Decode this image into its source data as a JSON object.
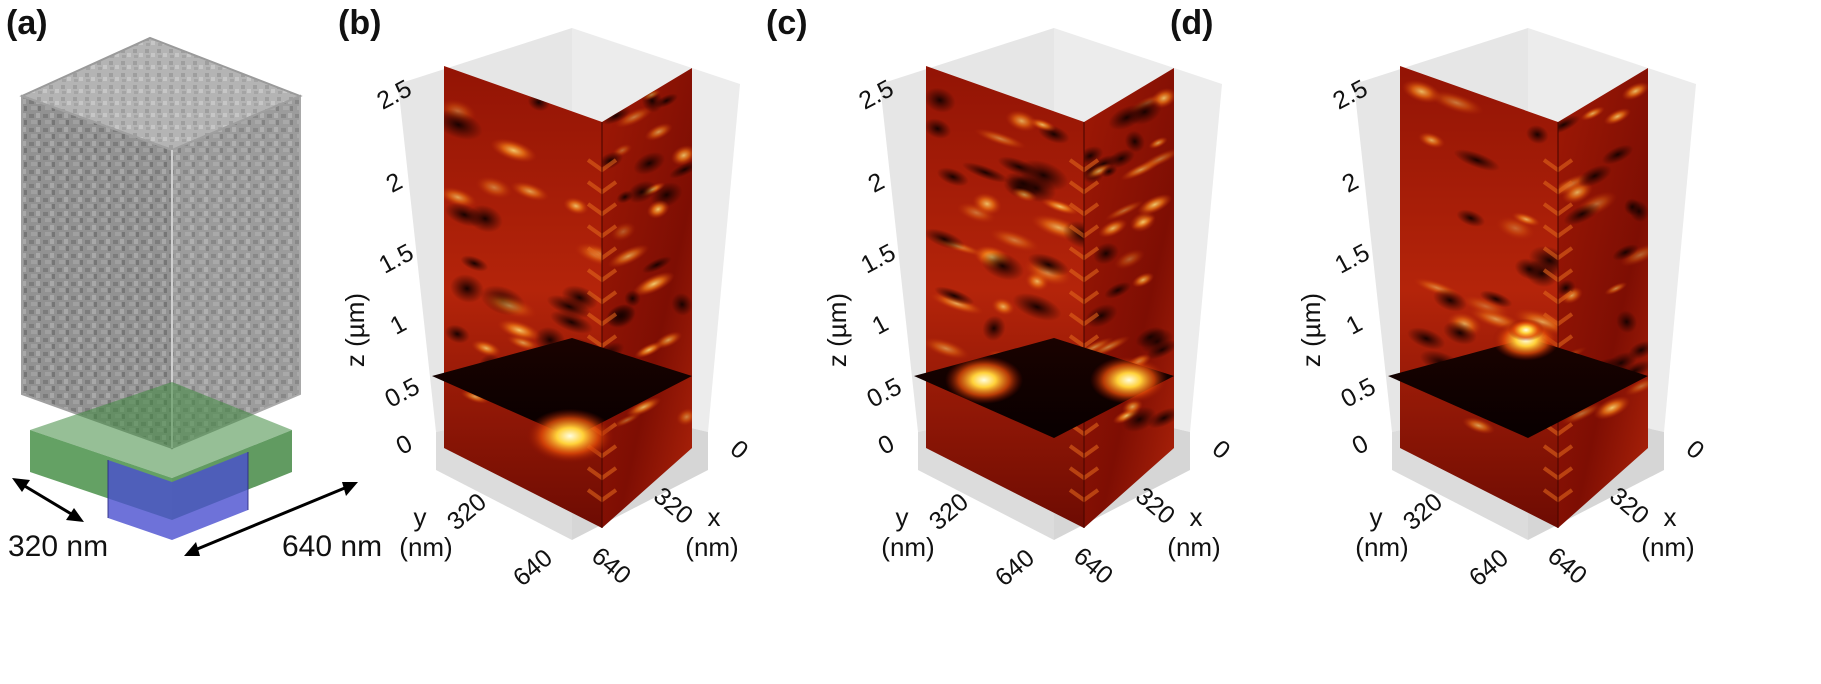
{
  "panel_a": {
    "label": "(a)",
    "dim_width": "320 nm",
    "dim_depth": "640 nm"
  },
  "panels": [
    {
      "label": "(b)",
      "z_ticks": [
        "0",
        "0.5",
        "1",
        "1.5",
        "2",
        "2.5"
      ],
      "z_label": "z (µm)",
      "y_ticks": [
        "320",
        "640"
      ],
      "y_label_1": "y",
      "y_label_2": "(nm)",
      "x_ticks": [
        "0",
        "320",
        "640"
      ],
      "x_label_1": "x",
      "x_label_2": "(nm)"
    },
    {
      "label": "(c)",
      "z_ticks": [
        "0",
        "0.5",
        "1",
        "1.5",
        "2",
        "2.5"
      ],
      "z_label": "z (µm)",
      "y_ticks": [
        "320",
        "640"
      ],
      "y_label_1": "y",
      "y_label_2": "(nm)",
      "x_ticks": [
        "0",
        "320",
        "640"
      ],
      "x_label_1": "x",
      "x_label_2": "(nm)"
    },
    {
      "label": "(d)",
      "z_ticks": [
        "0",
        "0.5",
        "1",
        "1.5",
        "2",
        "2.5"
      ],
      "z_label": "z (µm)",
      "y_ticks": [
        "320",
        "640"
      ],
      "y_label_1": "y",
      "y_label_2": "(nm)",
      "x_ticks": [
        "0",
        "320",
        "640"
      ],
      "x_label_1": "x",
      "x_label_2": "(nm)"
    }
  ],
  "colors": {
    "hot_dark": "#0a0000",
    "hot_red": "#9a1204",
    "hot_orange": "#e85a0a",
    "hot_yellow": "#ffe36a",
    "box_wall": "#e4e4e4",
    "substrate_green": "#3f8a3f",
    "substrate_blue": "#4a4fd0",
    "grain_gray": "#8a8a8a"
  }
}
